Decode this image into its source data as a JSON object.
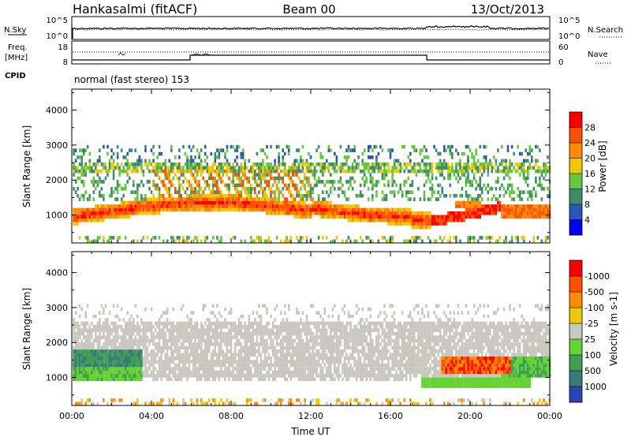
{
  "header": {
    "station": "Hankasalmi (fitACF)",
    "beam": "Beam 00",
    "date": "13/Oct/2013"
  },
  "noise_panel": {
    "left_label": "N.Sky",
    "right_label": "N.Search",
    "left_ticks": [
      "10^5",
      "10^0"
    ],
    "right_ticks": [
      "10^5",
      "10^0"
    ]
  },
  "freq_panel": {
    "left_label_line1": "Freq.",
    "left_label_line2": "[MHz]",
    "left_ticks": [
      "18",
      "8"
    ],
    "right_label": "Nave",
    "right_ticks": [
      "60",
      "0"
    ]
  },
  "cpid_panel": {
    "label": "CPID",
    "text": "normal (fast stereo) 153"
  },
  "x_axis": {
    "label": "Time UT",
    "ticks": [
      "00:00",
      "04:00",
      "08:00",
      "12:00",
      "16:00",
      "20:00",
      "00:00"
    ],
    "range_hours": [
      0,
      24
    ]
  },
  "chart_data": [
    {
      "type": "heatmap",
      "ylabel": "Slant Range [km]",
      "ylim": [
        200,
        4600
      ],
      "yticks": [
        1000,
        2000,
        3000,
        4000
      ],
      "colorbar": {
        "label": "Power [dB]",
        "ticks": [
          "4",
          "8",
          "12",
          "16",
          "20",
          "24",
          "28"
        ],
        "colors": [
          "#0000ff",
          "#2d55b4",
          "#3c8c6e",
          "#64c83c",
          "#f0c800",
          "#ff8c00",
          "#ff5000",
          "#ff0000"
        ]
      }
    },
    {
      "type": "heatmap",
      "ylabel": "Slant Range [km]",
      "ylim": [
        200,
        4600
      ],
      "yticks": [
        1000,
        2000,
        3000,
        4000
      ],
      "colorbar": {
        "label": "Velocity [m s-1]",
        "ticks": [
          "1000",
          "500",
          "100",
          "25",
          "-25",
          "-100",
          "-500",
          "-1000"
        ],
        "colors": [
          "#2846b4",
          "#3c7878",
          "#3ca050",
          "#64d232",
          "#c8c8c0",
          "#f0c800",
          "#ff8c00",
          "#ff5000",
          "#ff0000"
        ]
      }
    }
  ]
}
